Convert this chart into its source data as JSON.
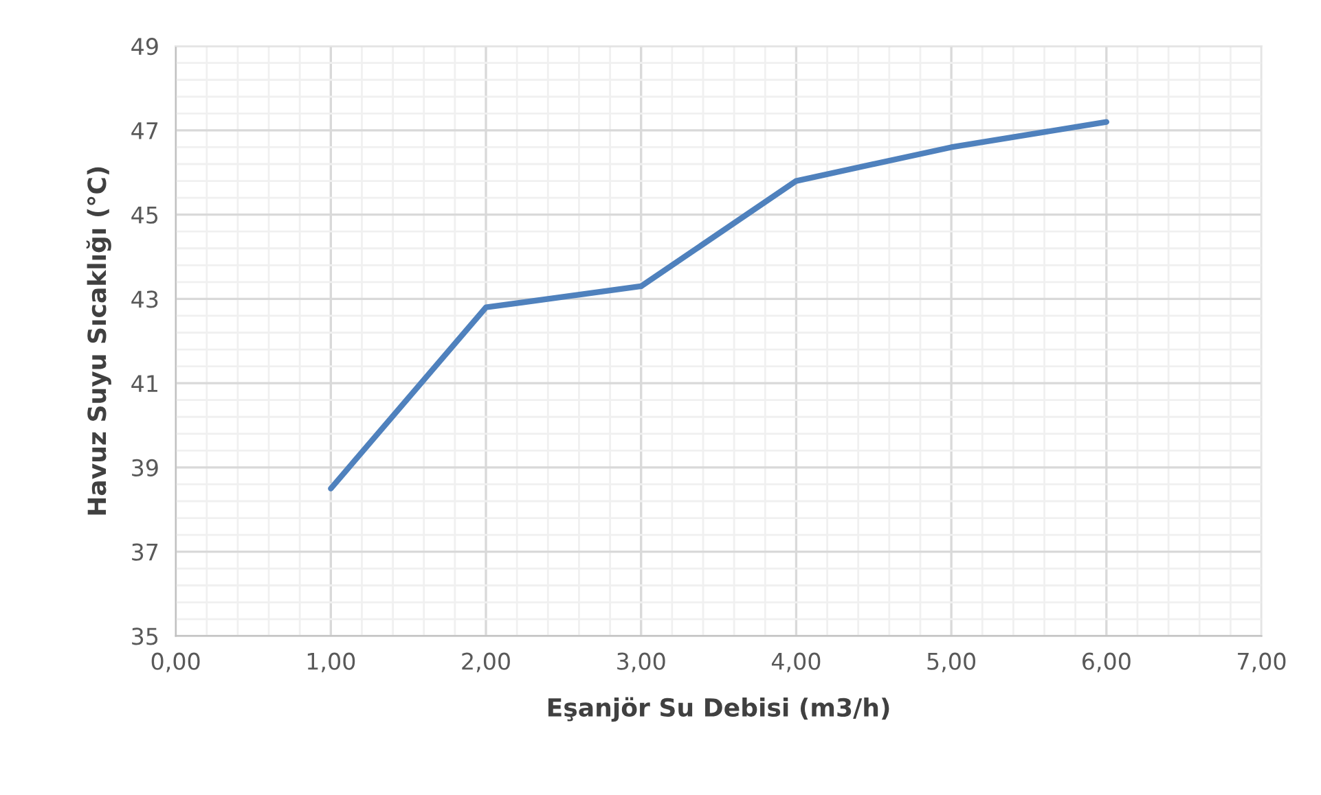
{
  "chart_data": {
    "type": "line",
    "xlabel": "Eşanjör Su Debisi (m3/h)",
    "ylabel": "Havuz Suyu Sıcaklığı (°C)",
    "x": [
      1,
      2,
      3,
      4,
      5,
      6
    ],
    "series": [
      {
        "color": "#4f81bd",
        "values": [
          38.5,
          42.8,
          43.3,
          45.8,
          46.6,
          47.2
        ]
      }
    ],
    "xlim": [
      0,
      7
    ],
    "xticks": [
      {
        "value": 0,
        "label": "0,00"
      },
      {
        "value": 1,
        "label": "1,00"
      },
      {
        "value": 2,
        "label": "2,00"
      },
      {
        "value": 3,
        "label": "3,00"
      },
      {
        "value": 4,
        "label": "4,00"
      },
      {
        "value": 5,
        "label": "5,00"
      },
      {
        "value": 6,
        "label": "6,00"
      },
      {
        "value": 7,
        "label": "7,00"
      }
    ],
    "ylim": [
      35,
      49
    ],
    "yticks": [
      35,
      37,
      39,
      41,
      43,
      45,
      47,
      49
    ],
    "grid": true,
    "marker": "none",
    "line_style": "solid"
  }
}
